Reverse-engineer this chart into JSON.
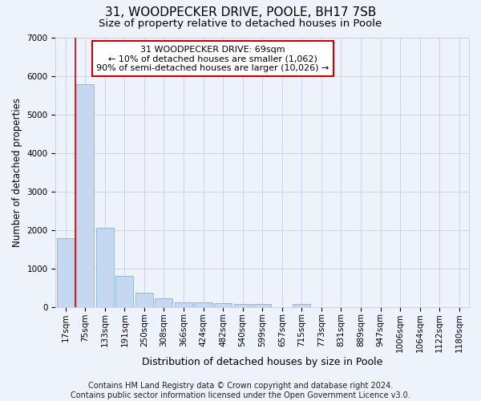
{
  "title": "31, WOODPECKER DRIVE, POOLE, BH17 7SB",
  "subtitle": "Size of property relative to detached houses in Poole",
  "xlabel": "Distribution of detached houses by size in Poole",
  "ylabel": "Number of detached properties",
  "footer_line1": "Contains HM Land Registry data © Crown copyright and database right 2024.",
  "footer_line2": "Contains public sector information licensed under the Open Government Licence v3.0.",
  "bar_color": "#c5d8f0",
  "bar_edge_color": "#8ab0d8",
  "vline_color": "#cc0000",
  "annotation_box_color": "#cc0000",
  "annotation_text": "31 WOODPECKER DRIVE: 69sqm\n← 10% of detached houses are smaller (1,062)\n90% of semi-detached houses are larger (10,026) →",
  "vline_x": 0.5,
  "categories": [
    "17sqm",
    "75sqm",
    "133sqm",
    "191sqm",
    "250sqm",
    "308sqm",
    "366sqm",
    "424sqm",
    "482sqm",
    "540sqm",
    "599sqm",
    "657sqm",
    "715sqm",
    "773sqm",
    "831sqm",
    "889sqm",
    "947sqm",
    "1006sqm",
    "1064sqm",
    "1122sqm",
    "1180sqm"
  ],
  "values": [
    1780,
    5780,
    2060,
    800,
    360,
    230,
    120,
    110,
    100,
    80,
    80,
    0,
    80,
    0,
    0,
    0,
    0,
    0,
    0,
    0,
    0
  ],
  "ylim": [
    0,
    7000
  ],
  "yticks": [
    0,
    1000,
    2000,
    3000,
    4000,
    5000,
    6000,
    7000
  ],
  "background_color": "#eef2fb",
  "grid_color": "#c8d0e8",
  "title_fontsize": 11,
  "subtitle_fontsize": 9.5,
  "tick_fontsize": 7.5,
  "ylabel_fontsize": 8.5,
  "xlabel_fontsize": 9,
  "footer_fontsize": 7,
  "annotation_fontsize": 8
}
